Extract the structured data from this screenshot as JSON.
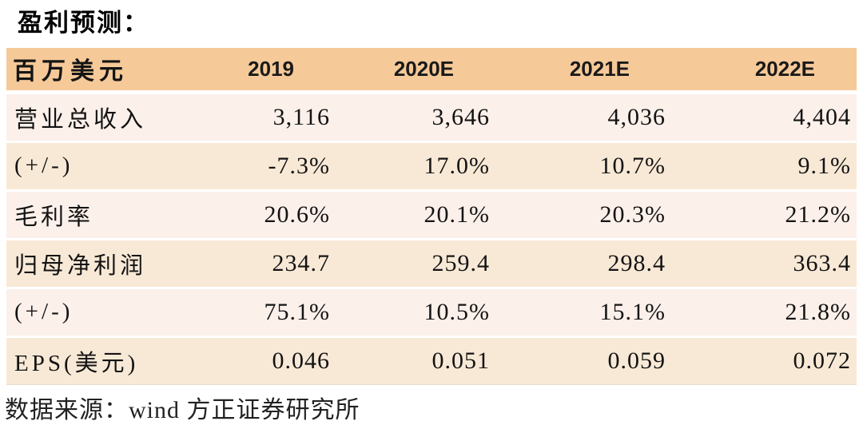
{
  "title": "盈利预测：",
  "table": {
    "unit_header": "百万美元",
    "columns": [
      "2019",
      "2020E",
      "2021E",
      "2022E"
    ],
    "rows": [
      {
        "label": "营业总收入",
        "values": [
          "3,116",
          "3,646",
          "4,036",
          "4,404"
        ]
      },
      {
        "label": "(+/-)",
        "values": [
          "-7.3%",
          "17.0%",
          "10.7%",
          "9.1%"
        ]
      },
      {
        "label": "毛利率",
        "values": [
          "20.6%",
          "20.1%",
          "20.3%",
          "21.2%"
        ]
      },
      {
        "label": "归母净利润",
        "values": [
          "234.7",
          "259.4",
          "298.4",
          "363.4"
        ]
      },
      {
        "label": "(+/-)",
        "values": [
          "75.1%",
          "10.5%",
          "15.1%",
          "21.8%"
        ]
      },
      {
        "label": "EPS(美元)",
        "values": [
          "0.046",
          "0.051",
          "0.059",
          "0.072"
        ]
      }
    ]
  },
  "footer": {
    "source_label": "数据来源：wind 方正证券研究所"
  },
  "colors": {
    "header_bg": "#F6C998",
    "row_light": "#FBF0EA",
    "row_tan": "#F8E9D6",
    "table_edge": "#E9DDD2"
  }
}
